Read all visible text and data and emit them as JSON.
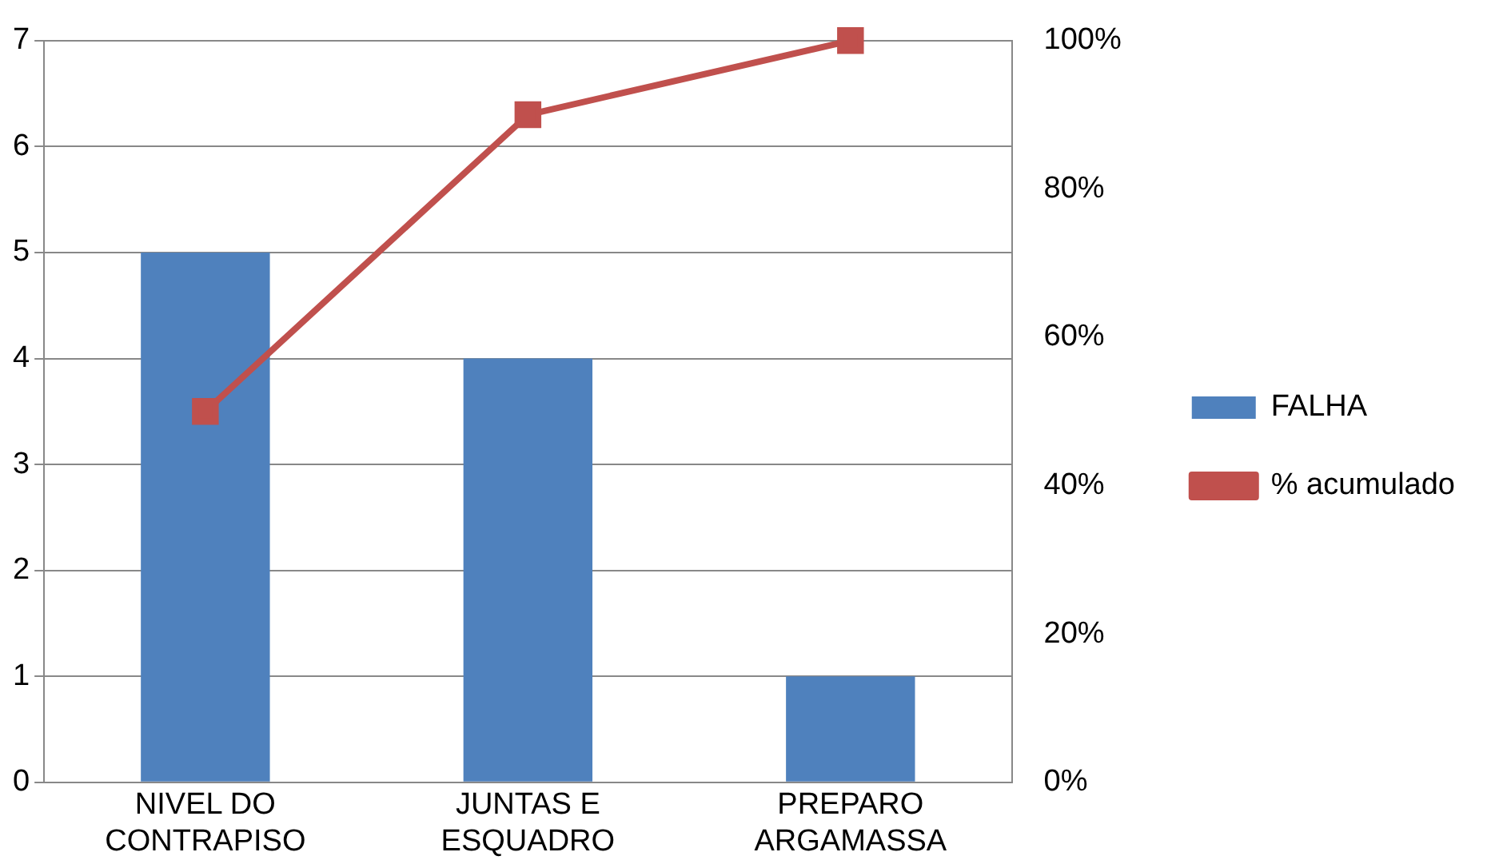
{
  "chart_data": {
    "type": "bar",
    "categories": [
      "NIVEL DO CONTRAPISO",
      "JUNTAS E ESQUADRO",
      "PREPARO ARGAMASSA"
    ],
    "series": [
      {
        "name": "FALHA",
        "color": "#4f81bd",
        "values": [
          5,
          4,
          1
        ]
      },
      {
        "name": "% acumulado",
        "type": "line",
        "axis": "y2",
        "color": "#c0504d",
        "values": [
          50,
          90,
          100
        ]
      }
    ],
    "ylim": [
      0,
      7
    ],
    "yticks": [
      0,
      1,
      2,
      3,
      4,
      5,
      6,
      7
    ],
    "y2lim": [
      0,
      100
    ],
    "y2ticks": [
      {
        "value": 0,
        "label": "0%"
      },
      {
        "value": 20,
        "label": "20%"
      },
      {
        "value": 40,
        "label": "40%"
      },
      {
        "value": 60,
        "label": "60%"
      },
      {
        "value": 80,
        "label": "80%"
      },
      {
        "value": 100,
        "label": "100%"
      }
    ],
    "grid": "y",
    "legend": "right",
    "marker": "square",
    "line_style": "solid"
  }
}
